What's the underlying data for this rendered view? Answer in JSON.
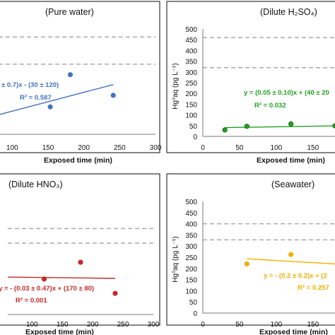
{
  "chart_data": [
    {
      "type": "scatter",
      "title": "(Pure water)",
      "xlabel": "Exposed time (min)",
      "ylabel": "",
      "xticks": [
        "100",
        "150",
        "200",
        "250",
        "300"
      ],
      "yticks": [],
      "xlim": [
        70,
        300
      ],
      "ylim": [
        0,
        500
      ],
      "points": [
        [
          153,
          130
        ],
        [
          181,
          283
        ],
        [
          241,
          185
        ]
      ],
      "fit": {
        "x": [
          70,
          241
        ],
        "y": [
          83,
          236
        ]
      },
      "guides": [
        462,
        333
      ],
      "color": "#4472c4",
      "equation": "± 0.7)x - (30 ± 120)",
      "r2": "R² = 0.587",
      "grid": false
    },
    {
      "type": "scatter",
      "title": "(Dilute H₂SO₄)",
      "xlabel": "Exposed time (min)",
      "ylabel": "Hg⁰aq (pg L⁻¹)",
      "xticks": [
        "0",
        "50",
        "100",
        "150"
      ],
      "yticks": [
        "0",
        "50",
        "100",
        "150",
        "200",
        "250",
        "300",
        "350",
        "400",
        "450",
        "500"
      ],
      "xlim": [
        0,
        180
      ],
      "ylim": [
        0,
        500
      ],
      "points": [
        [
          30,
          30
        ],
        [
          60,
          47
        ],
        [
          120,
          58
        ],
        [
          180,
          49
        ]
      ],
      "fit": {
        "x": [
          30,
          180
        ],
        "y": [
          41,
          49
        ]
      },
      "guides": [
        460,
        320
      ],
      "color": "#22a022",
      "equation": "y = (0.05 ± 0.10)x + (40 ± 20",
      "r2": "R² = 0.032",
      "grid": false
    },
    {
      "type": "scatter",
      "title": "(Dilute HNO₃)",
      "xlabel": "Exposed time (min)",
      "ylabel": "",
      "xticks": [
        "100",
        "150",
        "200",
        "250",
        "300"
      ],
      "yticks": [],
      "xlim": [
        60,
        300
      ],
      "ylim": [
        0,
        500
      ],
      "points": [
        [
          120,
          163
        ],
        [
          180,
          240
        ],
        [
          237,
          97
        ]
      ],
      "fit": {
        "x": [
          60,
          237
        ],
        "y": [
          172,
          166
        ]
      },
      "guides": [
        395,
        328
      ],
      "color": "#c62828",
      "equation": "y = - (0.03 ± 0.47)x + (170 ± 80)",
      "r2": "R² = 0.001",
      "grid": false
    },
    {
      "type": "scatter",
      "title": "(Seawater)",
      "xlabel": "Exposed time (min)",
      "ylabel": "Hg⁰aq (pg L⁻¹)",
      "xticks": [
        "0",
        "50",
        "100",
        "150"
      ],
      "yticks": [
        "0",
        "50",
        "100",
        "150",
        "200",
        "250",
        "300",
        "350",
        "400",
        "450",
        "500"
      ],
      "xlim": [
        0,
        180
      ],
      "ylim": [
        0,
        500
      ],
      "points": [
        [
          60,
          220
        ],
        [
          120,
          262
        ]
      ],
      "fit": {
        "x": [
          60,
          180
        ],
        "y": [
          243,
          220
        ]
      },
      "guides": [
        400,
        328
      ],
      "color": "#f0b000",
      "equation": "y = - (0.2 ± 0.2)x + (2",
      "r2": "R² = 0.257",
      "grid": false
    }
  ]
}
